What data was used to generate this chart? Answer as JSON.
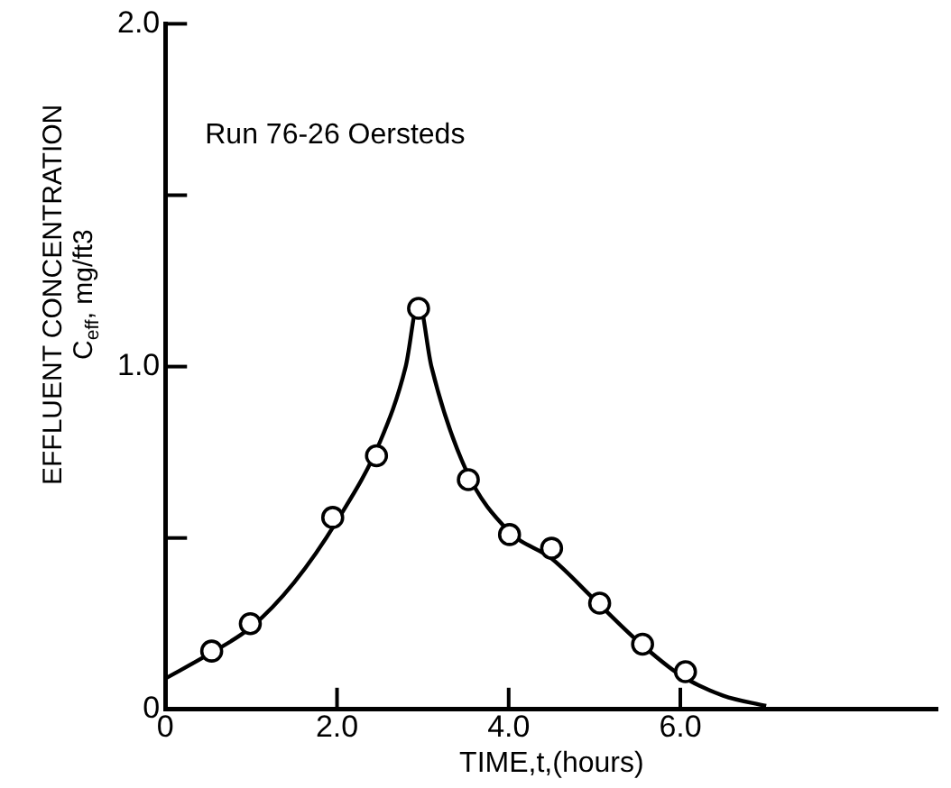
{
  "chart_data": {
    "type": "scatter",
    "xlabel": "TIME,t,(hours)",
    "ylabel": "EFFLUENT CONCENTRATION\nC$_{eff}$, mg/ft3",
    "annotations": [
      "Run 76-26 Oersteds"
    ],
    "xlim": [
      0,
      9
    ],
    "xticks": [
      0,
      {
        "value": 2,
        "label": "2.0"
      },
      {
        "value": 4,
        "label": "4.0"
      },
      {
        "value": 6,
        "label": "6.0"
      }
    ],
    "ylim": [
      0,
      2
    ],
    "yticks": [
      0,
      {
        "value": 0.5,
        "label": null
      },
      {
        "value": 1,
        "label": "1.0"
      },
      {
        "value": 1.5,
        "label": null
      },
      {
        "value": 2,
        "label": "2.0"
      }
    ],
    "grid": false,
    "legend": false,
    "series": [
      {
        "type": "scatter",
        "color": "#000000",
        "marker": "circle",
        "x": [
          0.54,
          0.99,
          1.95,
          2.46,
          2.95,
          3.53,
          4.01,
          4.5,
          5.06,
          5.56,
          6.06
        ],
        "values": [
          0.17,
          0.25,
          0.56,
          0.74,
          1.17,
          0.67,
          0.51,
          0.47,
          0.31,
          0.19,
          0.11
        ]
      },
      {
        "type": "line",
        "color": "#000000",
        "marker": "none",
        "line_style": "solid",
        "x": [
          0,
          0.5,
          1,
          1.5,
          2,
          2.5,
          2.8,
          2.95,
          3.1,
          3.5,
          4,
          4.5,
          5,
          5.5,
          6,
          6.5,
          7
        ],
        "values": [
          0.09,
          0.16,
          0.24,
          0.37,
          0.55,
          0.78,
          1.0,
          1.19,
          1.0,
          0.7,
          0.52,
          0.44,
          0.32,
          0.2,
          0.1,
          0.04,
          0.01
        ]
      }
    ]
  }
}
